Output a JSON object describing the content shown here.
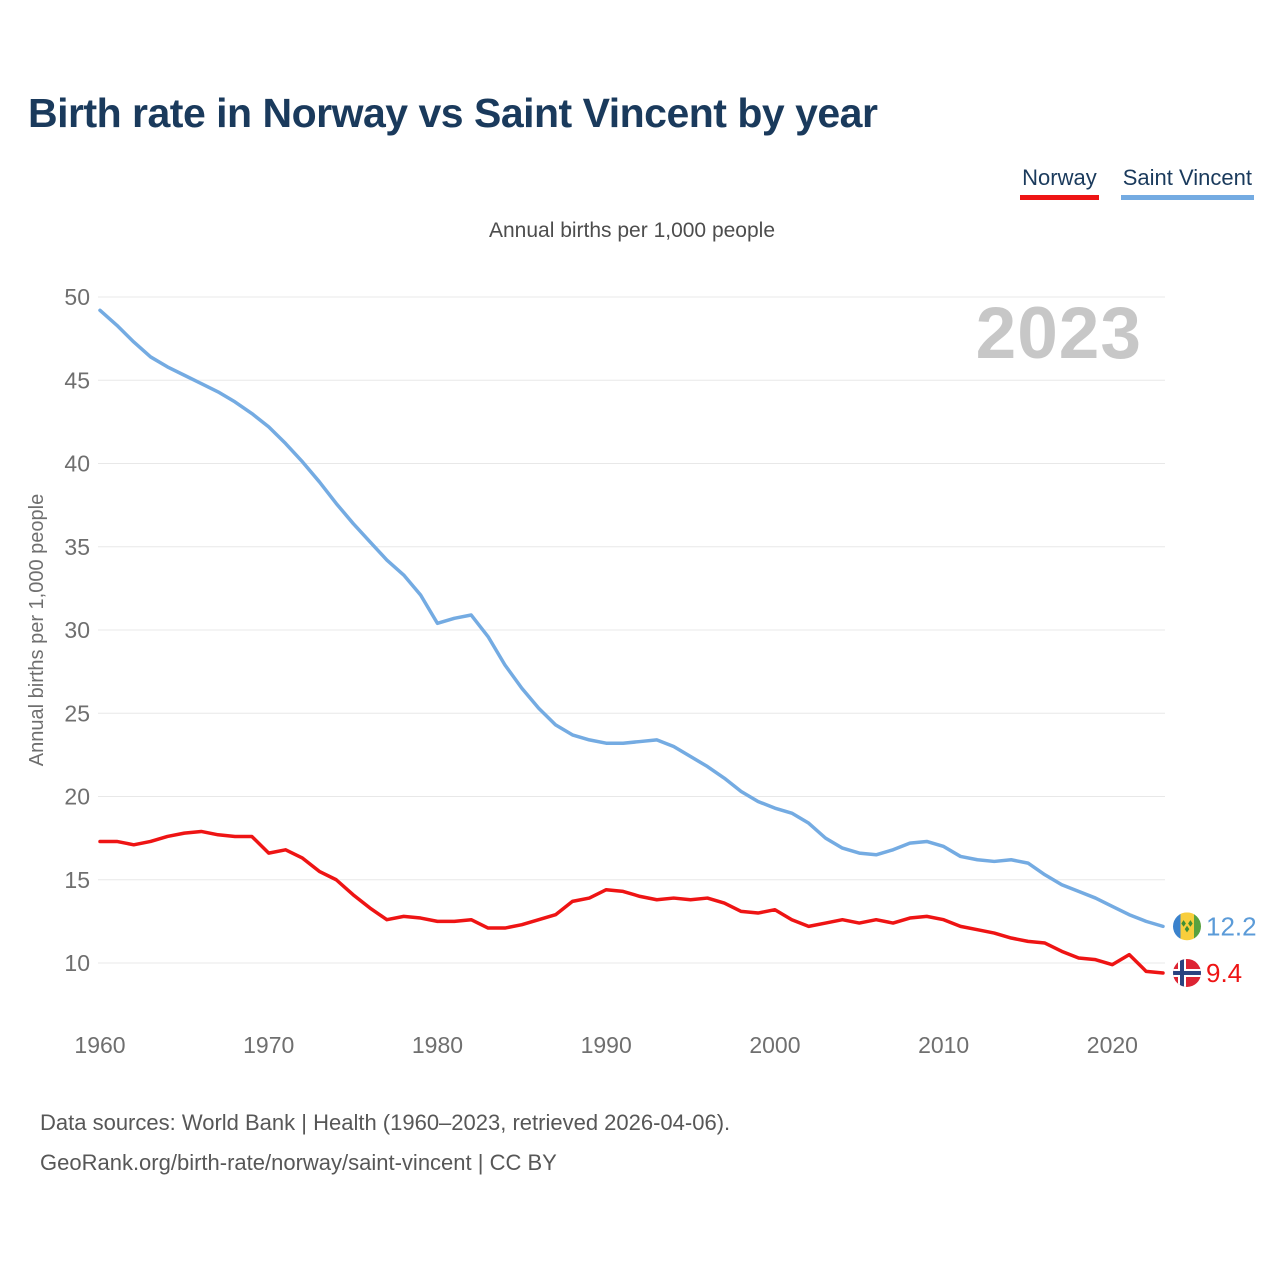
{
  "title": "Birth rate in Norway vs Saint Vincent by year",
  "subtitle": "Annual births per 1,000 people",
  "watermark": "2023",
  "y_axis_title": "Annual births per 1,000 people",
  "legend": [
    {
      "label": "Norway",
      "color": "#ee1414"
    },
    {
      "label": "Saint Vincent",
      "color": "#74abe2"
    }
  ],
  "end_labels": {
    "saint_vincent": "12.2",
    "norway": "9.4"
  },
  "footer": {
    "line1": "Data sources: World Bank | Health (1960–2023, retrieved 2026-04-06).",
    "line2": "GeoRank.org/birth-rate/norway/saint-vincent | CC BY"
  },
  "colors": {
    "norway_line": "#ee1414",
    "saint_vincent_line": "#74abe2",
    "norway_label": "#ee1414",
    "saint_vincent_label": "#5b9bd8",
    "title_text": "#1a3a5c",
    "axis_text": "#6f6f6f",
    "grid": "#e8e8e8",
    "watermark_text": "#c7c7c7"
  },
  "chart_data": {
    "type": "line",
    "title": "Birth rate in Norway vs Saint Vincent by year",
    "xlabel": "",
    "ylabel": "Annual births per 1,000 people",
    "ylim": [
      10,
      50
    ],
    "yticks": [
      10,
      15,
      20,
      25,
      30,
      35,
      40,
      45,
      50
    ],
    "xticks": [
      1960,
      1970,
      1980,
      1990,
      2000,
      2010,
      2020
    ],
    "grid": true,
    "legend_position": "top-right",
    "x": [
      1960,
      1961,
      1962,
      1963,
      1964,
      1965,
      1966,
      1967,
      1968,
      1969,
      1970,
      1971,
      1972,
      1973,
      1974,
      1975,
      1976,
      1977,
      1978,
      1979,
      1980,
      1981,
      1982,
      1983,
      1984,
      1985,
      1986,
      1987,
      1988,
      1989,
      1990,
      1991,
      1992,
      1993,
      1994,
      1995,
      1996,
      1997,
      1998,
      1999,
      2000,
      2001,
      2002,
      2003,
      2004,
      2005,
      2006,
      2007,
      2008,
      2009,
      2010,
      2011,
      2012,
      2013,
      2014,
      2015,
      2016,
      2017,
      2018,
      2019,
      2020,
      2021,
      2022,
      2023
    ],
    "series": [
      {
        "name": "Norway",
        "color": "#ee1414",
        "final_value": 9.4,
        "values": [
          17.3,
          17.3,
          17.1,
          17.3,
          17.6,
          17.8,
          17.9,
          17.7,
          17.6,
          17.6,
          16.6,
          16.8,
          16.3,
          15.5,
          15.0,
          14.1,
          13.3,
          12.6,
          12.8,
          12.7,
          12.5,
          12.5,
          12.6,
          12.1,
          12.1,
          12.3,
          12.6,
          12.9,
          13.7,
          13.9,
          14.4,
          14.3,
          14.0,
          13.8,
          13.9,
          13.8,
          13.9,
          13.6,
          13.1,
          13.0,
          13.2,
          12.6,
          12.2,
          12.4,
          12.6,
          12.4,
          12.6,
          12.4,
          12.7,
          12.8,
          12.6,
          12.2,
          12.0,
          11.8,
          11.5,
          11.3,
          11.2,
          10.7,
          10.3,
          10.2,
          9.9,
          10.5,
          9.5,
          9.4
        ]
      },
      {
        "name": "Saint Vincent",
        "color": "#74abe2",
        "final_value": 12.2,
        "values": [
          49.2,
          48.3,
          47.3,
          46.4,
          45.8,
          45.3,
          44.8,
          44.3,
          43.7,
          43.0,
          42.2,
          41.2,
          40.1,
          38.9,
          37.6,
          36.4,
          35.3,
          34.2,
          33.3,
          32.1,
          30.4,
          30.7,
          30.9,
          29.6,
          27.9,
          26.5,
          25.3,
          24.3,
          23.7,
          23.4,
          23.2,
          23.2,
          23.3,
          23.4,
          23.0,
          22.4,
          21.8,
          21.1,
          20.3,
          19.7,
          19.3,
          19.0,
          18.4,
          17.5,
          16.9,
          16.6,
          16.5,
          16.8,
          17.2,
          17.3,
          17.0,
          16.4,
          16.2,
          16.1,
          16.2,
          16.0,
          15.3,
          14.7,
          14.3,
          13.9,
          13.4,
          12.9,
          12.5,
          12.2
        ]
      }
    ]
  }
}
